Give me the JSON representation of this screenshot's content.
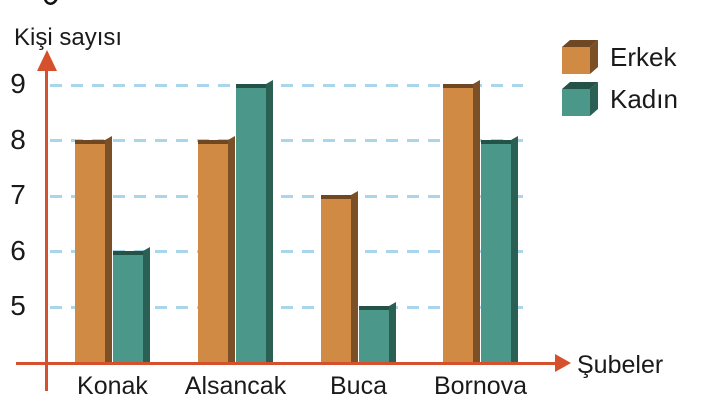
{
  "chart_data": {
    "type": "bar",
    "title": "",
    "categories": [
      "Konak",
      "Alsancak",
      "Buca",
      "Bornova"
    ],
    "series": [
      {
        "name": "Erkek",
        "values": [
          8,
          8,
          7,
          9
        ],
        "fill": "#d08a43",
        "side": "#7b5026",
        "top": "#6f4722"
      },
      {
        "name": "Kadın",
        "values": [
          6,
          9,
          5,
          8
        ],
        "fill": "#4b988b",
        "side": "#2a6054",
        "top": "#235247"
      }
    ],
    "xlabel": "Şubeler",
    "ylabel": "Kişi sayısı",
    "yticks": [
      5,
      6,
      7,
      8,
      9
    ],
    "ylim": [
      4,
      9.6
    ],
    "grid": "horizontal-dashed",
    "legend_position": "top-right"
  },
  "colors": {
    "axis": "#d5512d",
    "gridline": "#a9d6ea",
    "text": "#1a1a1a",
    "background": "#ffffff"
  }
}
